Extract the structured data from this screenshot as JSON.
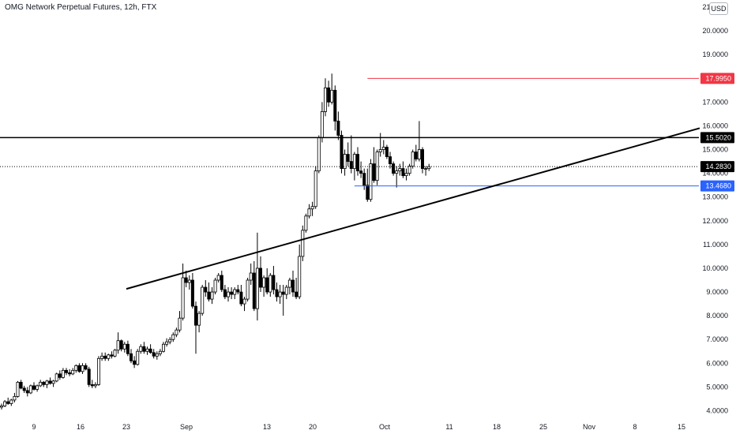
{
  "title": "OMG Network Perpetual Futures, 12h, FTX",
  "currency": "USD",
  "chart_data": {
    "type": "candlestick",
    "ylim": [
      3.75,
      21.3
    ],
    "yticks": [
      "4.0000",
      "5.0000",
      "6.0000",
      "7.0000",
      "8.0000",
      "9.0000",
      "10.0000",
      "11.0000",
      "12.0000",
      "13.0000",
      "14.0000",
      "15.0000",
      "16.0000",
      "17.0000",
      "18.0000",
      "19.0000",
      "20.0000",
      "21.0000"
    ],
    "xticks": [
      "9",
      "16",
      "23",
      "Sep",
      "13",
      "20",
      "Oct",
      "11",
      "18",
      "25",
      "Nov",
      "8",
      "15"
    ],
    "levels": [
      {
        "name": "resistance-high",
        "value": 17.995,
        "label": "17.9950",
        "color": "#f23645",
        "start_index": 113
      },
      {
        "name": "resistance-mid",
        "value": 15.502,
        "label": "15.5020",
        "color": "#000000",
        "start_index": 0
      },
      {
        "name": "current-price",
        "value": 14.283,
        "label": "14.2830",
        "color": "#000000",
        "start_index": 0
      },
      {
        "name": "support",
        "value": 13.468,
        "label": "13.4680",
        "color": "#2962ff",
        "start_index": 109
      }
    ],
    "trendline": {
      "x_start_index": 36,
      "y_start": 9.13,
      "x_end_index": 200,
      "y_end": 15.9
    },
    "candles": [
      [
        4.15,
        4.3,
        4.05,
        4.2
      ],
      [
        4.2,
        4.45,
        4.15,
        4.38
      ],
      [
        4.38,
        4.55,
        4.25,
        4.3
      ],
      [
        4.3,
        4.5,
        4.2,
        4.45
      ],
      [
        4.45,
        4.75,
        4.35,
        4.6
      ],
      [
        4.6,
        5.25,
        4.55,
        5.2
      ],
      [
        5.2,
        5.3,
        4.9,
        4.95
      ],
      [
        4.95,
        5.05,
        4.75,
        4.85
      ],
      [
        4.85,
        5.0,
        4.6,
        4.75
      ],
      [
        4.75,
        5.1,
        4.7,
        5.05
      ],
      [
        5.05,
        5.2,
        4.85,
        4.9
      ],
      [
        4.9,
        5.1,
        4.8,
        5.05
      ],
      [
        5.05,
        5.3,
        5.0,
        5.2
      ],
      [
        5.2,
        5.25,
        5.0,
        5.1
      ],
      [
        5.1,
        5.3,
        4.95,
        5.25
      ],
      [
        5.25,
        5.4,
        5.1,
        5.15
      ],
      [
        5.15,
        5.3,
        5.0,
        5.25
      ],
      [
        5.25,
        5.6,
        5.2,
        5.55
      ],
      [
        5.55,
        5.7,
        5.3,
        5.4
      ],
      [
        5.4,
        5.8,
        5.35,
        5.7
      ],
      [
        5.7,
        5.8,
        5.5,
        5.6
      ],
      [
        5.6,
        5.75,
        5.45,
        5.55
      ],
      [
        5.55,
        5.8,
        5.5,
        5.7
      ],
      [
        5.7,
        5.95,
        5.6,
        5.9
      ],
      [
        5.9,
        6.0,
        5.6,
        5.65
      ],
      [
        5.65,
        6.0,
        5.55,
        5.9
      ],
      [
        5.9,
        6.0,
        5.7,
        5.75
      ],
      [
        5.75,
        5.85,
        5.0,
        5.1
      ],
      [
        5.1,
        5.3,
        4.95,
        5.05
      ],
      [
        5.05,
        5.2,
        4.95,
        5.1
      ],
      [
        5.1,
        6.3,
        5.05,
        6.2
      ],
      [
        6.2,
        6.45,
        6.1,
        6.3
      ],
      [
        6.3,
        6.45,
        6.1,
        6.2
      ],
      [
        6.2,
        6.4,
        6.1,
        6.35
      ],
      [
        6.35,
        6.5,
        6.2,
        6.3
      ],
      [
        6.3,
        6.6,
        6.25,
        6.55
      ],
      [
        6.55,
        7.3,
        6.4,
        6.95
      ],
      [
        6.95,
        7.0,
        6.5,
        6.6
      ],
      [
        6.6,
        6.9,
        6.45,
        6.8
      ],
      [
        6.8,
        6.95,
        6.3,
        6.4
      ],
      [
        6.4,
        6.6,
        6.0,
        6.1
      ],
      [
        6.1,
        6.3,
        5.8,
        5.95
      ],
      [
        5.95,
        6.6,
        5.9,
        6.5
      ],
      [
        6.5,
        6.8,
        6.4,
        6.7
      ],
      [
        6.7,
        6.9,
        6.4,
        6.5
      ],
      [
        6.5,
        6.7,
        6.35,
        6.6
      ],
      [
        6.6,
        6.8,
        6.4,
        6.45
      ],
      [
        6.45,
        6.6,
        6.2,
        6.3
      ],
      [
        6.3,
        6.5,
        6.15,
        6.4
      ],
      [
        6.4,
        6.6,
        6.3,
        6.5
      ],
      [
        6.5,
        6.9,
        6.45,
        6.8
      ],
      [
        6.8,
        7.05,
        6.7,
        6.9
      ],
      [
        6.9,
        7.1,
        6.8,
        7.0
      ],
      [
        7.0,
        7.3,
        6.9,
        7.2
      ],
      [
        7.2,
        7.5,
        7.1,
        7.4
      ],
      [
        7.4,
        8.2,
        7.3,
        7.9
      ],
      [
        7.9,
        10.2,
        7.8,
        9.6
      ],
      [
        9.6,
        9.9,
        9.2,
        9.4
      ],
      [
        9.4,
        9.7,
        9.1,
        9.5
      ],
      [
        9.5,
        9.8,
        8.3,
        8.4
      ],
      [
        8.4,
        8.6,
        6.4,
        7.6
      ],
      [
        7.6,
        8.2,
        7.3,
        8.1
      ],
      [
        8.1,
        9.3,
        8.0,
        9.2
      ],
      [
        9.2,
        9.5,
        8.8,
        9.0
      ],
      [
        9.0,
        9.4,
        8.6,
        8.7
      ],
      [
        8.7,
        9.2,
        8.5,
        9.0
      ],
      [
        9.0,
        9.6,
        8.9,
        9.5
      ],
      [
        9.5,
        9.8,
        9.4,
        9.7
      ],
      [
        9.7,
        9.9,
        9.0,
        9.1
      ],
      [
        9.1,
        9.3,
        8.7,
        8.8
      ],
      [
        8.8,
        9.2,
        8.6,
        9.0
      ],
      [
        9.0,
        9.2,
        8.7,
        8.9
      ],
      [
        8.9,
        9.2,
        8.7,
        9.1
      ],
      [
        9.1,
        9.3,
        8.9,
        9.0
      ],
      [
        9.0,
        9.3,
        8.4,
        8.5
      ],
      [
        8.5,
        8.8,
        8.2,
        8.7
      ],
      [
        8.7,
        9.6,
        8.6,
        9.5
      ],
      [
        9.5,
        10.2,
        9.3,
        9.8
      ],
      [
        9.8,
        10.3,
        8.2,
        8.3
      ],
      [
        8.3,
        11.5,
        7.8,
        10.0
      ],
      [
        10.0,
        10.5,
        9.0,
        9.2
      ],
      [
        9.2,
        9.7,
        8.8,
        9.6
      ],
      [
        9.6,
        10.0,
        8.9,
        9.0
      ],
      [
        9.0,
        9.8,
        8.8,
        9.7
      ],
      [
        9.7,
        10.1,
        8.9,
        9.1
      ],
      [
        9.1,
        9.4,
        8.6,
        8.8
      ],
      [
        8.8,
        9.3,
        8.5,
        9.0
      ],
      [
        9.0,
        9.3,
        8.0,
        8.9
      ],
      [
        8.9,
        9.3,
        8.7,
        9.2
      ],
      [
        9.2,
        9.6,
        8.9,
        9.5
      ],
      [
        9.5,
        9.9,
        8.8,
        9.0
      ],
      [
        9.0,
        9.6,
        8.7,
        8.8
      ],
      [
        8.8,
        11.0,
        8.7,
        10.5
      ],
      [
        10.5,
        11.8,
        10.3,
        11.6
      ],
      [
        11.6,
        12.3,
        11.5,
        12.2
      ],
      [
        12.2,
        12.7,
        12.1,
        12.5
      ],
      [
        12.5,
        12.8,
        12.2,
        12.6
      ],
      [
        12.6,
        14.3,
        12.5,
        14.1
      ],
      [
        14.1,
        15.6,
        14.0,
        15.5
      ],
      [
        15.5,
        17.0,
        15.3,
        16.6
      ],
      [
        16.6,
        18.0,
        16.4,
        17.6
      ],
      [
        17.6,
        17.9,
        16.8,
        17.0
      ],
      [
        17.0,
        18.2,
        16.9,
        17.5
      ],
      [
        17.5,
        17.7,
        15.8,
        16.2
      ],
      [
        16.2,
        16.6,
        15.4,
        15.6
      ],
      [
        15.6,
        15.8,
        14.0,
        14.2
      ],
      [
        14.2,
        15.0,
        13.9,
        14.8
      ],
      [
        14.8,
        15.3,
        14.3,
        14.5
      ],
      [
        14.5,
        15.6,
        14.0,
        14.2
      ],
      [
        14.2,
        14.9,
        13.7,
        14.8
      ],
      [
        14.8,
        15.1,
        13.9,
        14.1
      ],
      [
        14.1,
        14.5,
        13.8,
        14.0
      ],
      [
        14.0,
        14.2,
        13.3,
        13.5
      ],
      [
        13.5,
        14.2,
        12.8,
        12.9
      ],
      [
        12.9,
        14.6,
        12.8,
        14.4
      ],
      [
        14.4,
        15.1,
        13.6,
        13.7
      ],
      [
        13.7,
        15.0,
        13.5,
        14.9
      ],
      [
        14.9,
        15.7,
        14.7,
        15.0
      ],
      [
        15.0,
        15.4,
        14.8,
        15.1
      ],
      [
        15.1,
        15.2,
        14.6,
        14.7
      ],
      [
        14.7,
        14.9,
        14.2,
        14.4
      ],
      [
        14.4,
        14.5,
        13.9,
        14.0
      ],
      [
        14.0,
        14.3,
        13.4,
        14.1
      ],
      [
        14.1,
        14.4,
        13.9,
        14.2
      ],
      [
        14.2,
        14.5,
        13.8,
        13.9
      ],
      [
        13.9,
        14.2,
        13.7,
        14.0
      ],
      [
        14.0,
        14.4,
        13.9,
        14.3
      ],
      [
        14.3,
        15.0,
        14.2,
        14.9
      ],
      [
        14.9,
        15.2,
        14.5,
        14.6
      ],
      [
        14.6,
        16.2,
        14.5,
        15.0
      ],
      [
        15.0,
        15.1,
        14.0,
        14.2
      ],
      [
        14.2,
        14.3,
        13.9,
        14.2
      ],
      [
        14.2,
        14.4,
        14.1,
        14.28
      ]
    ]
  }
}
